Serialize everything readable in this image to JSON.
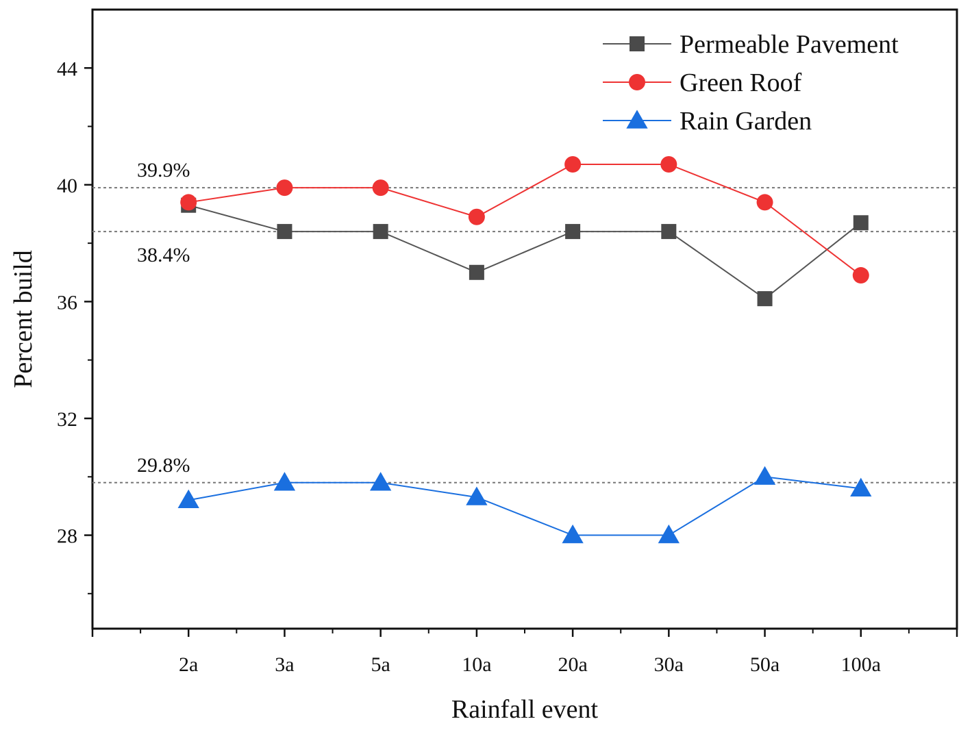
{
  "chart_data": {
    "type": "line",
    "title": "",
    "xlabel": "Rainfall event",
    "ylabel": "Percent build",
    "categories": [
      "2a",
      "3a",
      "5a",
      "10a",
      "20a",
      "30a",
      "50a",
      "100a"
    ],
    "x_range": [
      0,
      9
    ],
    "ylim": [
      24.8,
      46
    ],
    "y_ticks": [
      28,
      32,
      36,
      40,
      44
    ],
    "y_tick_labels": [
      "28",
      "32",
      "36",
      "40",
      "44"
    ],
    "grid": false,
    "legend_position": "top-right",
    "series": [
      {
        "name": "Permeable Pavement",
        "marker": "square",
        "color": "#4a4a4a",
        "line_color": "#555555",
        "values": [
          39.3,
          38.4,
          38.4,
          37.0,
          38.4,
          38.4,
          36.1,
          38.7
        ]
      },
      {
        "name": "Green Roof",
        "marker": "circle",
        "color": "#ee3333",
        "line_color": "#ee3333",
        "values": [
          39.4,
          39.9,
          39.9,
          38.9,
          40.7,
          40.7,
          39.4,
          36.9
        ]
      },
      {
        "name": "Rain Garden",
        "marker": "triangle",
        "color": "#1a6fdf",
        "line_color": "#1a6fdf",
        "values": [
          29.2,
          29.8,
          29.8,
          29.3,
          28.0,
          28.0,
          30.0,
          29.6
        ]
      }
    ],
    "reference_lines": [
      {
        "value": 39.9,
        "label": "39.9%",
        "label_side": "above"
      },
      {
        "value": 38.4,
        "label": "38.4%",
        "label_side": "below"
      },
      {
        "value": 29.8,
        "label": "29.8%",
        "label_side": "above"
      }
    ]
  }
}
